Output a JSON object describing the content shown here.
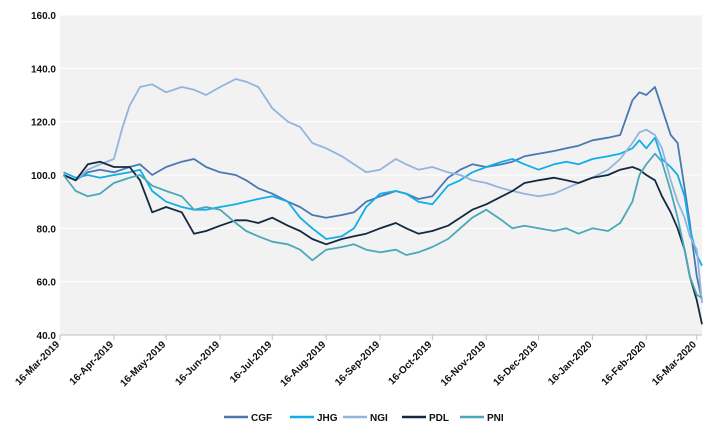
{
  "chart_data": {
    "type": "line",
    "title": "",
    "xlabel": "",
    "ylabel": "",
    "ylim": [
      40,
      160
    ],
    "xlim": [
      "2019-03-16",
      "2020-03-19"
    ],
    "grid": true,
    "legend_position": "bottom",
    "y_ticks": [
      "40.0",
      "60.0",
      "80.0",
      "100.0",
      "120.0",
      "140.0",
      "160.0"
    ],
    "x_ticks": [
      {
        "date": "2019-03-16",
        "label": "16-Mar-2019"
      },
      {
        "date": "2019-04-16",
        "label": "16-Apr-2019"
      },
      {
        "date": "2019-05-16",
        "label": "16-May-2019"
      },
      {
        "date": "2019-06-16",
        "label": "16-Jun-2019"
      },
      {
        "date": "2019-07-16",
        "label": "16-Jul-2019"
      },
      {
        "date": "2019-08-16",
        "label": "16-Aug-2019"
      },
      {
        "date": "2019-09-16",
        "label": "16-Sep-2019"
      },
      {
        "date": "2019-10-16",
        "label": "16-Oct-2019"
      },
      {
        "date": "2019-11-16",
        "label": "16-Nov-2019"
      },
      {
        "date": "2019-12-16",
        "label": "16-Dec-2019"
      },
      {
        "date": "2020-01-16",
        "label": "16-Jan-2020"
      },
      {
        "date": "2020-02-16",
        "label": "16-Feb-2020"
      },
      {
        "date": "2020-03-16",
        "label": "16-Mar-2020"
      }
    ],
    "series": [
      {
        "name": "CGF",
        "color": "#4a78b0",
        "points": [
          [
            "2019-03-18",
            100
          ],
          [
            "2019-03-25",
            98
          ],
          [
            "2019-04-01",
            101
          ],
          [
            "2019-04-08",
            102
          ],
          [
            "2019-04-16",
            101
          ],
          [
            "2019-04-25",
            103
          ],
          [
            "2019-05-01",
            104
          ],
          [
            "2019-05-08",
            100
          ],
          [
            "2019-05-16",
            103
          ],
          [
            "2019-05-25",
            105
          ],
          [
            "2019-06-01",
            106
          ],
          [
            "2019-06-08",
            103
          ],
          [
            "2019-06-16",
            101
          ],
          [
            "2019-06-25",
            100
          ],
          [
            "2019-07-01",
            98
          ],
          [
            "2019-07-08",
            95
          ],
          [
            "2019-07-16",
            93
          ],
          [
            "2019-07-25",
            90
          ],
          [
            "2019-08-01",
            88
          ],
          [
            "2019-08-08",
            85
          ],
          [
            "2019-08-16",
            84
          ],
          [
            "2019-08-25",
            85
          ],
          [
            "2019-09-01",
            86
          ],
          [
            "2019-09-08",
            90
          ],
          [
            "2019-09-16",
            92
          ],
          [
            "2019-09-25",
            94
          ],
          [
            "2019-10-01",
            93
          ],
          [
            "2019-10-08",
            91
          ],
          [
            "2019-10-16",
            92
          ],
          [
            "2019-10-25",
            99
          ],
          [
            "2019-11-01",
            102
          ],
          [
            "2019-11-08",
            104
          ],
          [
            "2019-11-16",
            103
          ],
          [
            "2019-11-25",
            104
          ],
          [
            "2019-12-01",
            105
          ],
          [
            "2019-12-08",
            107
          ],
          [
            "2019-12-16",
            108
          ],
          [
            "2019-12-25",
            109
          ],
          [
            "2020-01-01",
            110
          ],
          [
            "2020-01-08",
            111
          ],
          [
            "2020-01-16",
            113
          ],
          [
            "2020-01-25",
            114
          ],
          [
            "2020-02-01",
            115
          ],
          [
            "2020-02-08",
            128
          ],
          [
            "2020-02-12",
            131
          ],
          [
            "2020-02-16",
            130
          ],
          [
            "2020-02-21",
            133
          ],
          [
            "2020-02-25",
            125
          ],
          [
            "2020-03-01",
            115
          ],
          [
            "2020-03-05",
            112
          ],
          [
            "2020-03-09",
            95
          ],
          [
            "2020-03-12",
            82
          ],
          [
            "2020-03-16",
            62
          ],
          [
            "2020-03-19",
            53
          ]
        ]
      },
      {
        "name": "JHG",
        "color": "#10aee8",
        "points": [
          [
            "2019-03-18",
            101
          ],
          [
            "2019-03-25",
            99
          ],
          [
            "2019-04-01",
            100
          ],
          [
            "2019-04-08",
            99
          ],
          [
            "2019-04-16",
            100
          ],
          [
            "2019-04-25",
            101
          ],
          [
            "2019-05-01",
            102
          ],
          [
            "2019-05-08",
            94
          ],
          [
            "2019-05-16",
            90
          ],
          [
            "2019-05-25",
            88
          ],
          [
            "2019-06-01",
            87
          ],
          [
            "2019-06-08",
            87
          ],
          [
            "2019-06-16",
            88
          ],
          [
            "2019-06-25",
            89
          ],
          [
            "2019-07-01",
            90
          ],
          [
            "2019-07-08",
            91
          ],
          [
            "2019-07-16",
            92
          ],
          [
            "2019-07-25",
            90
          ],
          [
            "2019-08-01",
            84
          ],
          [
            "2019-08-08",
            80
          ],
          [
            "2019-08-16",
            76
          ],
          [
            "2019-08-25",
            77
          ],
          [
            "2019-09-01",
            80
          ],
          [
            "2019-09-08",
            88
          ],
          [
            "2019-09-16",
            93
          ],
          [
            "2019-09-25",
            94
          ],
          [
            "2019-10-01",
            93
          ],
          [
            "2019-10-08",
            90
          ],
          [
            "2019-10-16",
            89
          ],
          [
            "2019-10-25",
            96
          ],
          [
            "2019-11-01",
            98
          ],
          [
            "2019-11-08",
            101
          ],
          [
            "2019-11-16",
            103
          ],
          [
            "2019-11-25",
            105
          ],
          [
            "2019-12-01",
            106
          ],
          [
            "2019-12-08",
            104
          ],
          [
            "2019-12-16",
            102
          ],
          [
            "2019-12-25",
            104
          ],
          [
            "2020-01-01",
            105
          ],
          [
            "2020-01-08",
            104
          ],
          [
            "2020-01-16",
            106
          ],
          [
            "2020-01-25",
            107
          ],
          [
            "2020-02-01",
            108
          ],
          [
            "2020-02-08",
            110
          ],
          [
            "2020-02-12",
            113
          ],
          [
            "2020-02-16",
            110
          ],
          [
            "2020-02-21",
            114
          ],
          [
            "2020-02-25",
            106
          ],
          [
            "2020-03-01",
            103
          ],
          [
            "2020-03-05",
            100
          ],
          [
            "2020-03-09",
            92
          ],
          [
            "2020-03-12",
            80
          ],
          [
            "2020-03-16",
            70
          ],
          [
            "2020-03-19",
            66
          ]
        ]
      },
      {
        "name": "NGI",
        "color": "#93b4dc",
        "points": [
          [
            "2019-03-18",
            100
          ],
          [
            "2019-03-25",
            98
          ],
          [
            "2019-04-01",
            102
          ],
          [
            "2019-04-08",
            104
          ],
          [
            "2019-04-16",
            106
          ],
          [
            "2019-04-21",
            118
          ],
          [
            "2019-04-25",
            126
          ],
          [
            "2019-05-01",
            133
          ],
          [
            "2019-05-08",
            134
          ],
          [
            "2019-05-16",
            131
          ],
          [
            "2019-05-25",
            133
          ],
          [
            "2019-06-01",
            132
          ],
          [
            "2019-06-08",
            130
          ],
          [
            "2019-06-16",
            133
          ],
          [
            "2019-06-25",
            136
          ],
          [
            "2019-07-01",
            135
          ],
          [
            "2019-07-08",
            133
          ],
          [
            "2019-07-16",
            125
          ],
          [
            "2019-07-25",
            120
          ],
          [
            "2019-08-01",
            118
          ],
          [
            "2019-08-08",
            112
          ],
          [
            "2019-08-16",
            110
          ],
          [
            "2019-08-25",
            107
          ],
          [
            "2019-09-01",
            104
          ],
          [
            "2019-09-08",
            101
          ],
          [
            "2019-09-16",
            102
          ],
          [
            "2019-09-25",
            106
          ],
          [
            "2019-10-01",
            104
          ],
          [
            "2019-10-08",
            102
          ],
          [
            "2019-10-16",
            103
          ],
          [
            "2019-10-25",
            101
          ],
          [
            "2019-11-01",
            100
          ],
          [
            "2019-11-08",
            98
          ],
          [
            "2019-11-16",
            97
          ],
          [
            "2019-11-25",
            95
          ],
          [
            "2019-12-01",
            94
          ],
          [
            "2019-12-08",
            93
          ],
          [
            "2019-12-16",
            92
          ],
          [
            "2019-12-25",
            93
          ],
          [
            "2020-01-01",
            95
          ],
          [
            "2020-01-08",
            97
          ],
          [
            "2020-01-16",
            99
          ],
          [
            "2020-01-25",
            102
          ],
          [
            "2020-02-01",
            106
          ],
          [
            "2020-02-08",
            112
          ],
          [
            "2020-02-12",
            116
          ],
          [
            "2020-02-16",
            117
          ],
          [
            "2020-02-21",
            115
          ],
          [
            "2020-02-25",
            110
          ],
          [
            "2020-03-01",
            98
          ],
          [
            "2020-03-05",
            90
          ],
          [
            "2020-03-09",
            84
          ],
          [
            "2020-03-12",
            77
          ],
          [
            "2020-03-16",
            72
          ],
          [
            "2020-03-19",
            52
          ]
        ]
      },
      {
        "name": "PDL",
        "color": "#142842",
        "points": [
          [
            "2019-03-18",
            100
          ],
          [
            "2019-03-25",
            98
          ],
          [
            "2019-04-01",
            104
          ],
          [
            "2019-04-08",
            105
          ],
          [
            "2019-04-16",
            103
          ],
          [
            "2019-04-25",
            103
          ],
          [
            "2019-05-01",
            98
          ],
          [
            "2019-05-08",
            86
          ],
          [
            "2019-05-16",
            88
          ],
          [
            "2019-05-25",
            86
          ],
          [
            "2019-06-01",
            78
          ],
          [
            "2019-06-08",
            79
          ],
          [
            "2019-06-16",
            81
          ],
          [
            "2019-06-25",
            83
          ],
          [
            "2019-07-01",
            83
          ],
          [
            "2019-07-08",
            82
          ],
          [
            "2019-07-16",
            84
          ],
          [
            "2019-07-25",
            81
          ],
          [
            "2019-08-01",
            79
          ],
          [
            "2019-08-08",
            76
          ],
          [
            "2019-08-16",
            74
          ],
          [
            "2019-08-25",
            76
          ],
          [
            "2019-09-01",
            77
          ],
          [
            "2019-09-08",
            78
          ],
          [
            "2019-09-16",
            80
          ],
          [
            "2019-09-25",
            82
          ],
          [
            "2019-10-01",
            80
          ],
          [
            "2019-10-08",
            78
          ],
          [
            "2019-10-16",
            79
          ],
          [
            "2019-10-25",
            81
          ],
          [
            "2019-11-01",
            84
          ],
          [
            "2019-11-08",
            87
          ],
          [
            "2019-11-16",
            89
          ],
          [
            "2019-11-25",
            92
          ],
          [
            "2019-12-01",
            94
          ],
          [
            "2019-12-08",
            97
          ],
          [
            "2019-12-16",
            98
          ],
          [
            "2019-12-25",
            99
          ],
          [
            "2020-01-01",
            98
          ],
          [
            "2020-01-08",
            97
          ],
          [
            "2020-01-16",
            99
          ],
          [
            "2020-01-25",
            100
          ],
          [
            "2020-02-01",
            102
          ],
          [
            "2020-02-08",
            103
          ],
          [
            "2020-02-12",
            102
          ],
          [
            "2020-02-16",
            100
          ],
          [
            "2020-02-21",
            98
          ],
          [
            "2020-02-25",
            92
          ],
          [
            "2020-03-01",
            86
          ],
          [
            "2020-03-05",
            80
          ],
          [
            "2020-03-09",
            72
          ],
          [
            "2020-03-12",
            62
          ],
          [
            "2020-03-16",
            53
          ],
          [
            "2020-03-19",
            44
          ]
        ]
      },
      {
        "name": "PNI",
        "color": "#4aa8b8",
        "points": [
          [
            "2019-03-18",
            100
          ],
          [
            "2019-03-25",
            94
          ],
          [
            "2019-04-01",
            92
          ],
          [
            "2019-04-08",
            93
          ],
          [
            "2019-04-16",
            97
          ],
          [
            "2019-04-25",
            99
          ],
          [
            "2019-05-01",
            100
          ],
          [
            "2019-05-08",
            96
          ],
          [
            "2019-05-16",
            94
          ],
          [
            "2019-05-25",
            92
          ],
          [
            "2019-06-01",
            87
          ],
          [
            "2019-06-08",
            88
          ],
          [
            "2019-06-16",
            87
          ],
          [
            "2019-06-25",
            82
          ],
          [
            "2019-07-01",
            79
          ],
          [
            "2019-07-08",
            77
          ],
          [
            "2019-07-16",
            75
          ],
          [
            "2019-07-25",
            74
          ],
          [
            "2019-08-01",
            72
          ],
          [
            "2019-08-08",
            68
          ],
          [
            "2019-08-16",
            72
          ],
          [
            "2019-08-25",
            73
          ],
          [
            "2019-09-01",
            74
          ],
          [
            "2019-09-08",
            72
          ],
          [
            "2019-09-16",
            71
          ],
          [
            "2019-09-25",
            72
          ],
          [
            "2019-10-01",
            70
          ],
          [
            "2019-10-08",
            71
          ],
          [
            "2019-10-16",
            73
          ],
          [
            "2019-10-25",
            76
          ],
          [
            "2019-11-01",
            80
          ],
          [
            "2019-11-08",
            84
          ],
          [
            "2019-11-16",
            87
          ],
          [
            "2019-11-25",
            83
          ],
          [
            "2019-12-01",
            80
          ],
          [
            "2019-12-08",
            81
          ],
          [
            "2019-12-16",
            80
          ],
          [
            "2019-12-25",
            79
          ],
          [
            "2020-01-01",
            80
          ],
          [
            "2020-01-08",
            78
          ],
          [
            "2020-01-16",
            80
          ],
          [
            "2020-01-25",
            79
          ],
          [
            "2020-02-01",
            82
          ],
          [
            "2020-02-08",
            90
          ],
          [
            "2020-02-12",
            100
          ],
          [
            "2020-02-16",
            104
          ],
          [
            "2020-02-21",
            108
          ],
          [
            "2020-02-25",
            105
          ],
          [
            "2020-03-01",
            94
          ],
          [
            "2020-03-05",
            84
          ],
          [
            "2020-03-09",
            72
          ],
          [
            "2020-03-12",
            62
          ],
          [
            "2020-03-16",
            55
          ],
          [
            "2020-03-19",
            54
          ]
        ]
      }
    ]
  }
}
